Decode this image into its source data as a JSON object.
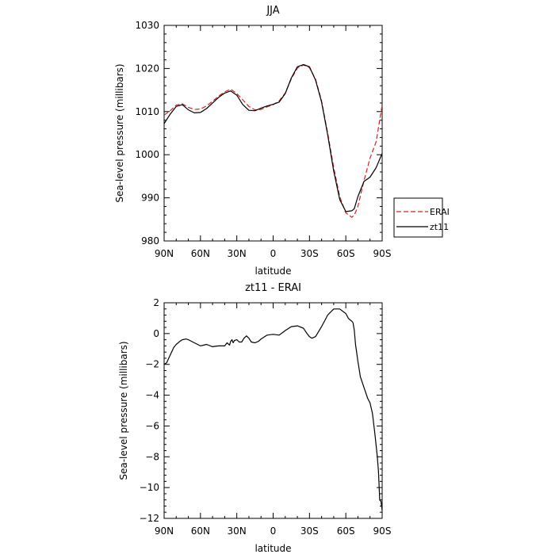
{
  "chart_data": [
    {
      "type": "line",
      "title": "JJA",
      "xlabel": "latitude",
      "ylabel": "Sea-level pressure (millibars)",
      "xlim": [
        -90,
        90
      ],
      "ylim": [
        980,
        1030
      ],
      "xticks": [
        -90,
        -60,
        -30,
        0,
        30,
        60,
        90
      ],
      "xtick_labels": [
        "90N",
        "60N",
        "30N",
        "0",
        "30S",
        "60S",
        "90S"
      ],
      "yticks": [
        980,
        990,
        1000,
        1010,
        1020,
        1030
      ],
      "ytick_labels": [
        "980",
        "990",
        "1000",
        "1010",
        "1020",
        "1030"
      ],
      "grid": false,
      "legend_position": "right-outside",
      "series": [
        {
          "name": "ERAI",
          "color": "#d62020",
          "dash": "dashed",
          "x": [
            -90,
            -85,
            -80,
            -75,
            -70,
            -65,
            -60,
            -55,
            -50,
            -45,
            -40,
            -35,
            -30,
            -25,
            -20,
            -15,
            -10,
            -5,
            0,
            5,
            10,
            15,
            20,
            25,
            30,
            35,
            40,
            45,
            50,
            55,
            60,
            65,
            67,
            70,
            75,
            80,
            85,
            90
          ],
          "y": [
            1009.2,
            1010.2,
            1011.5,
            1011.8,
            1011.0,
            1010.5,
            1010.6,
            1011.3,
            1012.4,
            1013.6,
            1014.6,
            1015.2,
            1014.2,
            1012.7,
            1011.2,
            1010.4,
            1010.5,
            1011.1,
            1011.6,
            1012.5,
            1014.3,
            1017.6,
            1020.1,
            1020.8,
            1020.2,
            1017.5,
            1012.5,
            1005.0,
            997.0,
            990.3,
            986.5,
            985.5,
            986.0,
            988.0,
            994.0,
            999.2,
            1003.0,
            1011.5
          ]
        },
        {
          "name": "zt11",
          "color": "#000000",
          "dash": "solid",
          "x": [
            -90,
            -85,
            -80,
            -75,
            -70,
            -65,
            -60,
            -55,
            -50,
            -45,
            -40,
            -35,
            -30,
            -25,
            -20,
            -15,
            -10,
            -5,
            0,
            5,
            10,
            15,
            20,
            25,
            30,
            35,
            40,
            45,
            50,
            55,
            60,
            65,
            67,
            70,
            75,
            80,
            85,
            90
          ],
          "y": [
            1007.2,
            1009.4,
            1011.2,
            1011.6,
            1010.4,
            1009.7,
            1009.8,
            1010.7,
            1012.0,
            1013.3,
            1014.3,
            1014.8,
            1013.8,
            1011.6,
            1010.3,
            1010.2,
            1010.8,
            1011.3,
            1011.7,
            1012.2,
            1014.2,
            1017.8,
            1020.4,
            1020.9,
            1020.4,
            1017.3,
            1012.2,
            1004.6,
            996.2,
            989.6,
            986.8,
            987.0,
            987.5,
            990.3,
            993.8,
            994.8,
            997.0,
            1000.3
          ]
        }
      ]
    },
    {
      "type": "line",
      "title": "zt11 - ERAI",
      "xlabel": "latitude",
      "ylabel": "Sea-level pressure (millibars)",
      "xlim": [
        -90,
        90
      ],
      "ylim": [
        -12,
        2
      ],
      "xticks": [
        -90,
        -60,
        -30,
        0,
        30,
        60,
        90
      ],
      "xtick_labels": [
        "90N",
        "60N",
        "30N",
        "0",
        "30S",
        "60S",
        "90S"
      ],
      "yticks": [
        -12,
        -10,
        -8,
        -6,
        -4,
        -2,
        0,
        2
      ],
      "ytick_labels": [
        "−12",
        "−10",
        "−8",
        "−6",
        "−4",
        "−2",
        "0",
        "2"
      ],
      "grid": false,
      "series": [
        {
          "color": "#000000",
          "dash": "solid",
          "x": [
            -90,
            -88,
            -85,
            -82,
            -80,
            -77,
            -75,
            -72,
            -70,
            -65,
            -60,
            -55,
            -50,
            -45,
            -40,
            -38,
            -36,
            -35,
            -34,
            -33,
            -32,
            -30,
            -28,
            -26,
            -24,
            -22,
            -20,
            -18,
            -15,
            -12,
            -10,
            -5,
            0,
            5,
            10,
            15,
            20,
            25,
            28,
            30,
            32,
            35,
            40,
            45,
            50,
            55,
            60,
            62,
            64,
            65,
            66,
            67,
            68,
            70,
            72,
            75,
            78,
            80,
            82,
            84,
            86,
            87,
            88,
            89,
            90
          ],
          "y": [
            -2.0,
            -1.9,
            -1.4,
            -0.9,
            -0.7,
            -0.5,
            -0.4,
            -0.35,
            -0.4,
            -0.6,
            -0.8,
            -0.7,
            -0.85,
            -0.8,
            -0.8,
            -0.6,
            -0.75,
            -0.5,
            -0.4,
            -0.6,
            -0.45,
            -0.4,
            -0.55,
            -0.55,
            -0.3,
            -0.15,
            -0.3,
            -0.55,
            -0.6,
            -0.5,
            -0.35,
            -0.1,
            -0.05,
            -0.1,
            0.2,
            0.45,
            0.5,
            0.35,
            0.0,
            -0.2,
            -0.3,
            -0.2,
            0.45,
            1.2,
            1.6,
            1.6,
            1.3,
            1.0,
            0.85,
            0.8,
            0.7,
            0.2,
            -0.7,
            -1.8,
            -2.8,
            -3.5,
            -4.2,
            -4.5,
            -5.2,
            -6.5,
            -8.0,
            -9.0,
            -10.8,
            -10.9,
            -11.5
          ]
        }
      ]
    }
  ],
  "legend": {
    "items": [
      {
        "label": "ERAI",
        "color": "#d62020",
        "dash": "dashed"
      },
      {
        "label": "zt11",
        "color": "#000000",
        "dash": "solid"
      }
    ]
  }
}
